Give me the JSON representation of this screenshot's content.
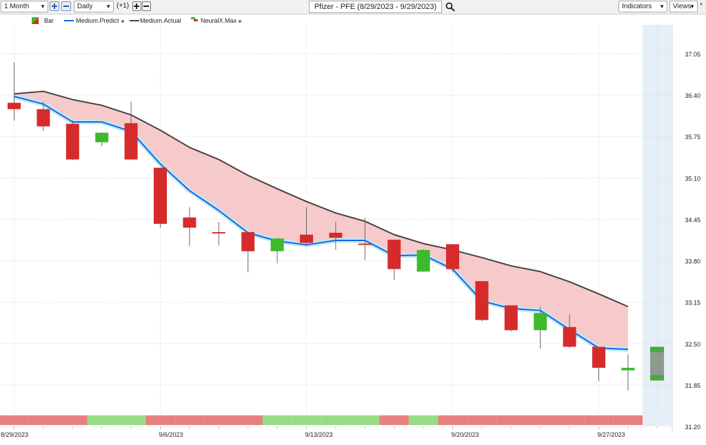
{
  "toolbar": {
    "period": "1 Month",
    "interval": "Daily",
    "offset": "(+1)",
    "title": "Pfizer - PFE (8/29/2023 - 9/29/2023)",
    "indicators": "Indicators",
    "views": "Views",
    "asterisk": "*"
  },
  "legend": [
    {
      "label": "Bar",
      "icon": "candle-swatch"
    },
    {
      "label": "Medium.Predict",
      "color": "#1565e0"
    },
    {
      "label": "Medium.Actual",
      "color": "#444444"
    },
    {
      "label": "NeuralX.Max",
      "icon": "neural-swatch"
    }
  ],
  "colors": {
    "up": "#3cba2c",
    "down": "#d62b2b",
    "predict": "#1565e0",
    "actual": "#474040",
    "band_fill": "#f6caca",
    "forecast_zone": "#e6eef8",
    "strip_red": "#e88080",
    "strip_green": "#98dc86"
  },
  "chart_data": {
    "type": "candlestick",
    "ylim": [
      31.2,
      37.05
    ],
    "yticks": [
      "37.05",
      "36.40",
      "35.75",
      "35.10",
      "34.45",
      "33.80",
      "33.15",
      "32.50",
      "31.85",
      "31.20"
    ],
    "xtick_labels": [
      "8/29/2023",
      "9/6/2023",
      "9/13/2023",
      "9/20/2023",
      "9/27/2023"
    ],
    "candles": [
      {
        "o": 36.28,
        "h": 36.92,
        "l": 36.0,
        "c": 36.18
      },
      {
        "o": 36.18,
        "h": 36.3,
        "l": 35.84,
        "c": 35.91
      },
      {
        "o": 35.95,
        "h": 36.0,
        "l": 35.38,
        "c": 35.39
      },
      {
        "o": 35.66,
        "h": 35.82,
        "l": 35.6,
        "c": 35.81
      },
      {
        "o": 35.96,
        "h": 36.3,
        "l": 35.38,
        "c": 35.39
      },
      {
        "o": 35.26,
        "h": 35.26,
        "l": 34.32,
        "c": 34.38
      },
      {
        "o": 34.48,
        "h": 34.64,
        "l": 34.03,
        "c": 34.32
      },
      {
        "o": 34.25,
        "h": 34.41,
        "l": 34.04,
        "c": 34.24
      },
      {
        "o": 34.25,
        "h": 34.25,
        "l": 33.62,
        "c": 33.95
      },
      {
        "o": 33.95,
        "h": 34.16,
        "l": 33.76,
        "c": 34.15
      },
      {
        "o": 34.21,
        "h": 34.64,
        "l": 34.03,
        "c": 34.08
      },
      {
        "o": 34.24,
        "h": 34.41,
        "l": 33.97,
        "c": 34.16
      },
      {
        "o": 34.07,
        "h": 34.47,
        "l": 33.81,
        "c": 34.06
      },
      {
        "o": 34.13,
        "h": 34.13,
        "l": 33.5,
        "c": 33.67
      },
      {
        "o": 33.63,
        "h": 33.98,
        "l": 33.63,
        "c": 33.97
      },
      {
        "o": 34.06,
        "h": 34.06,
        "l": 33.63,
        "c": 33.67
      },
      {
        "o": 33.48,
        "h": 33.48,
        "l": 32.85,
        "c": 32.87
      },
      {
        "o": 33.1,
        "h": 33.1,
        "l": 32.69,
        "c": 32.71
      },
      {
        "o": 32.71,
        "h": 33.08,
        "l": 32.42,
        "c": 32.98
      },
      {
        "o": 32.76,
        "h": 32.96,
        "l": 32.43,
        "c": 32.45
      },
      {
        "o": 32.45,
        "h": 32.45,
        "l": 31.91,
        "c": 32.12
      },
      {
        "o": 32.08,
        "h": 32.33,
        "l": 31.76,
        "c": 32.12
      }
    ],
    "forecast_bar": {
      "o": 31.92,
      "c": 32.45
    },
    "series": [
      {
        "name": "Medium.Predict",
        "values": [
          36.38,
          36.26,
          35.98,
          35.98,
          35.83,
          35.32,
          34.9,
          34.59,
          34.24,
          34.11,
          34.05,
          34.12,
          34.12,
          33.88,
          33.89,
          33.67,
          33.17,
          33.05,
          33.02,
          32.72,
          32.43,
          32.41
        ]
      },
      {
        "name": "Medium.Actual",
        "values": [
          36.42,
          36.46,
          36.33,
          36.24,
          36.09,
          35.85,
          35.58,
          35.39,
          35.14,
          34.93,
          34.73,
          34.55,
          34.42,
          34.21,
          34.07,
          33.97,
          33.85,
          33.72,
          33.63,
          33.47,
          33.28,
          33.08
        ]
      }
    ],
    "strip": [
      "red",
      "red",
      "red",
      "green",
      "green",
      "red",
      "red",
      "red",
      "red",
      "green",
      "green",
      "green",
      "green",
      "red",
      "green",
      "red",
      "red",
      "red",
      "red",
      "red",
      "red",
      "red"
    ]
  }
}
